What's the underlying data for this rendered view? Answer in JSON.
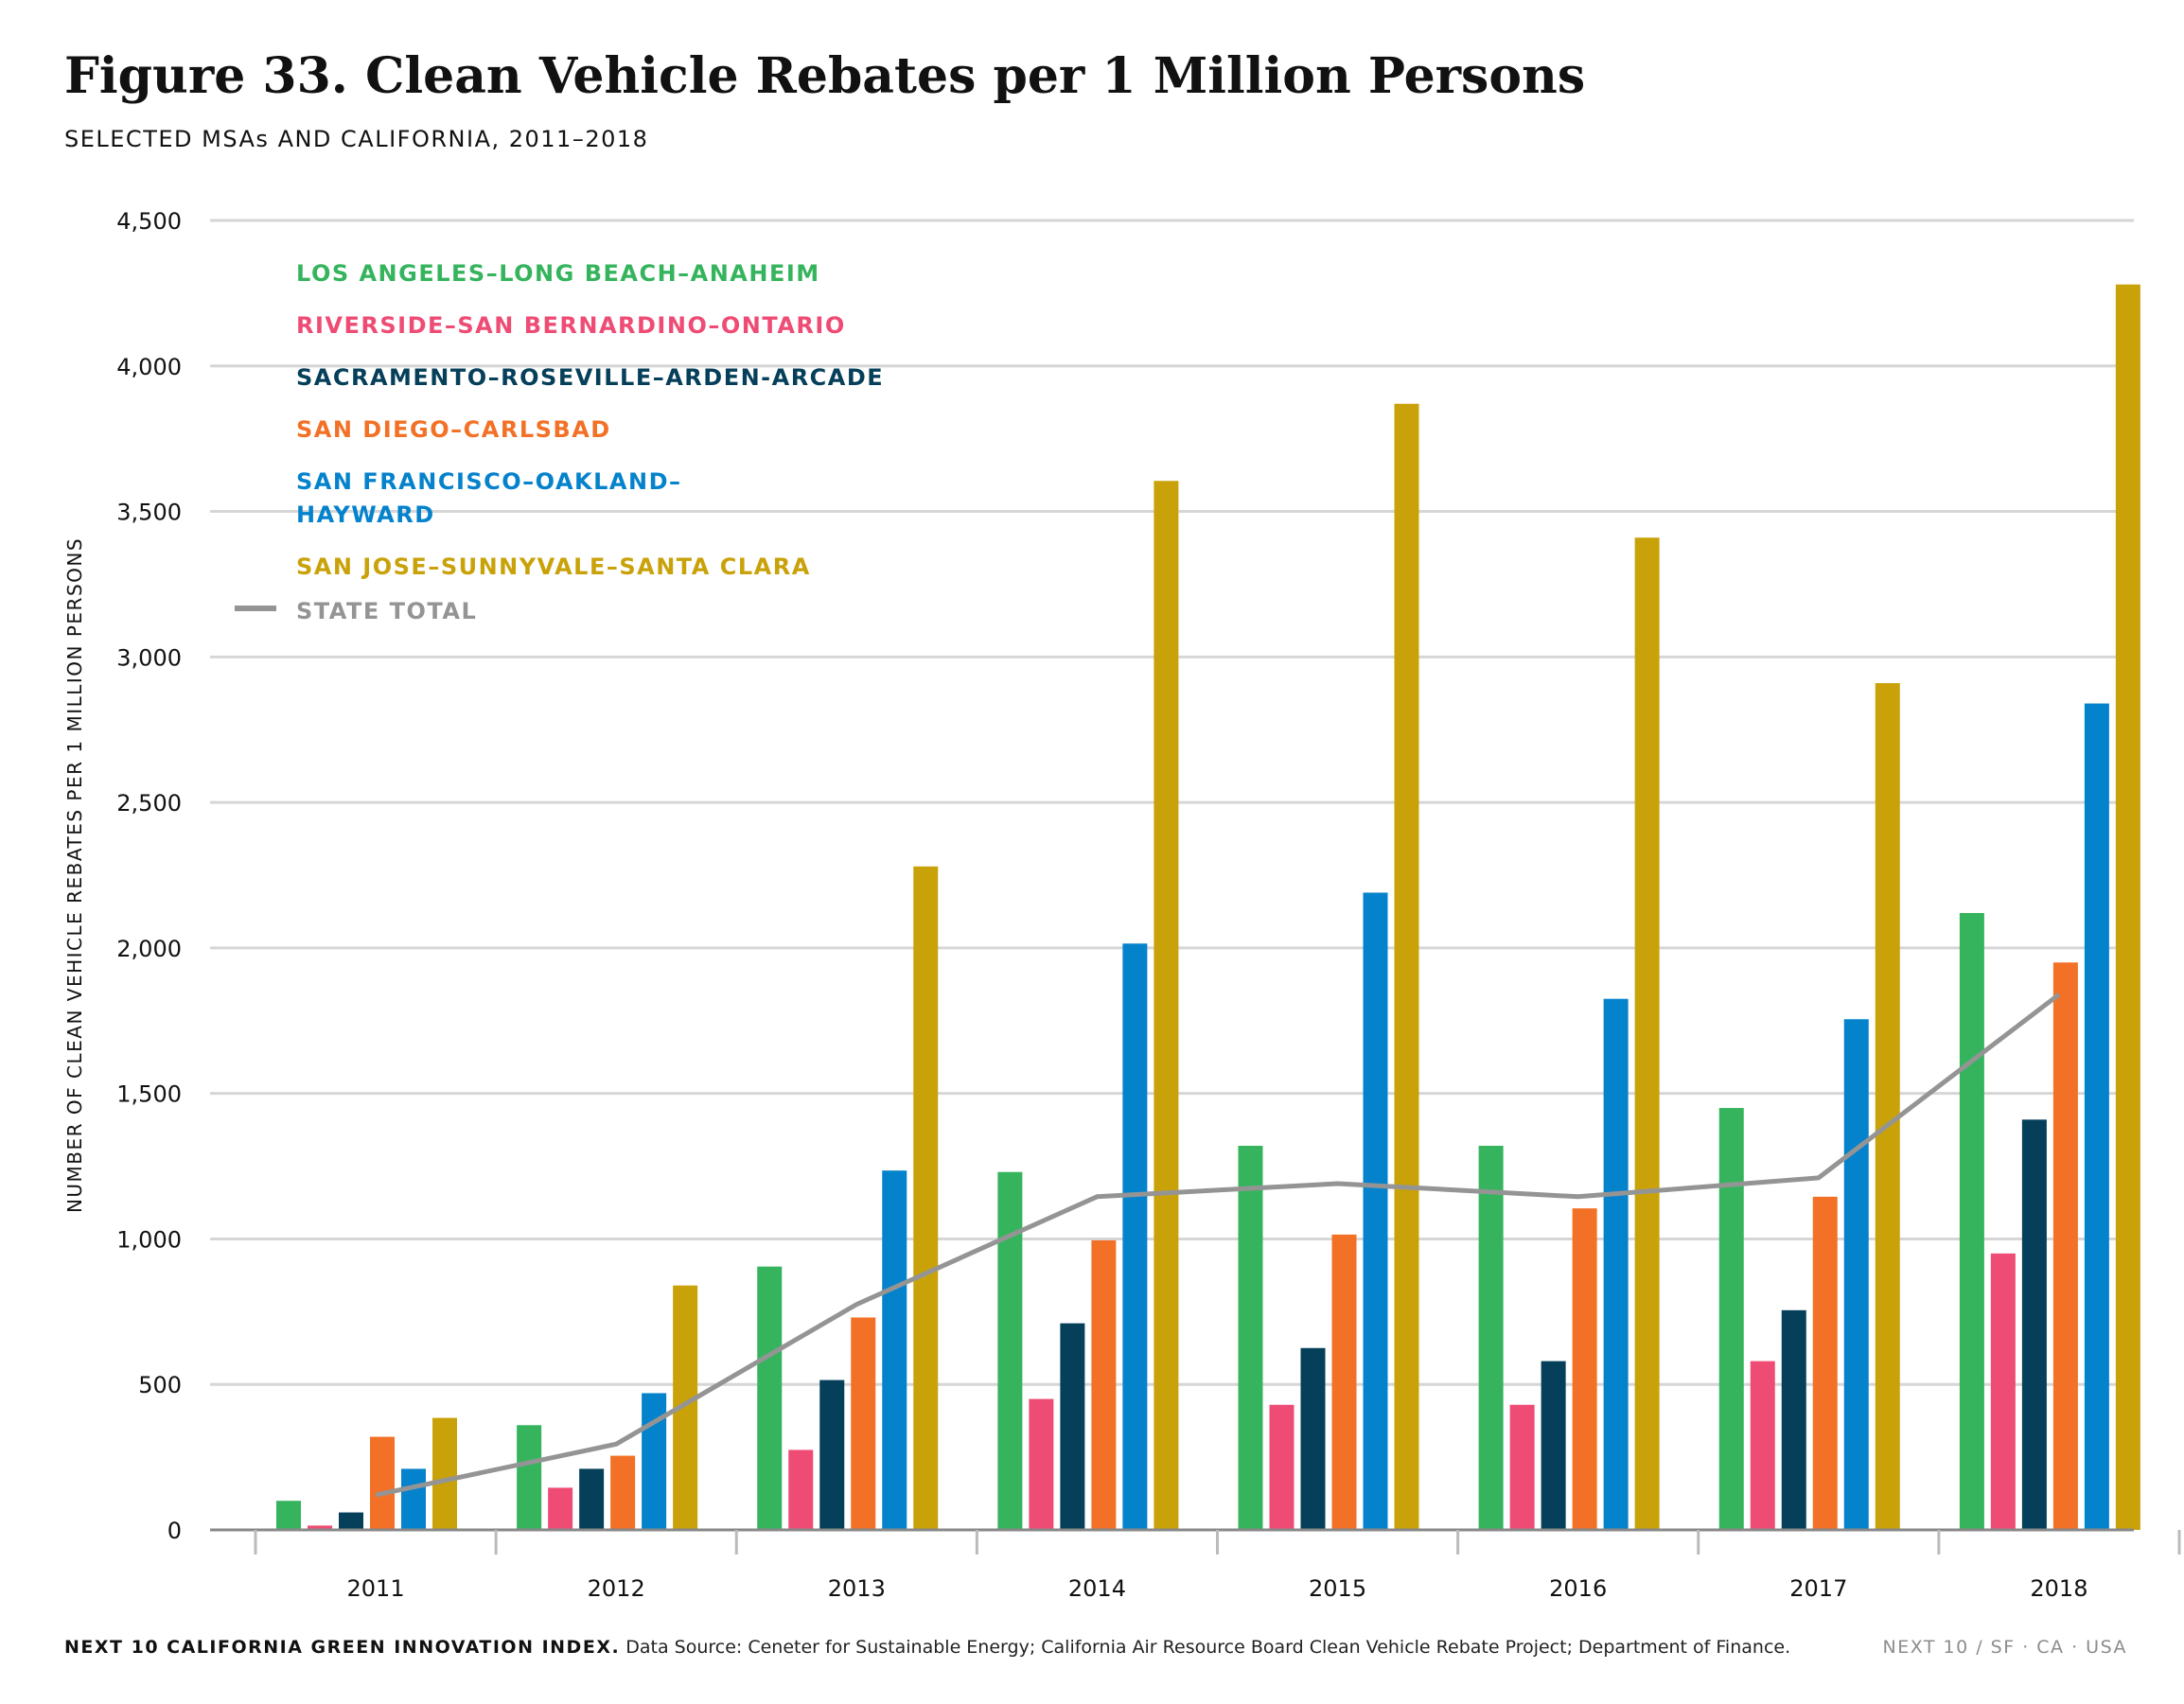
{
  "header": {
    "title": "Figure 33. Clean Vehicle Rebates per 1 Million Persons",
    "subtitle": "SELECTED MSAs AND CALIFORNIA, 2011–2018"
  },
  "footer": {
    "source_label": "NEXT 10 CALIFORNIA GREEN INNOVATION INDEX.",
    "source_note": "Data Source: Ceneter for Sustainable Energy; California Air Resource Board Clean Vehicle Rebate Project; Department of Finance.",
    "brand": "NEXT 10  /  SF · CA · USA"
  },
  "chart_data": {
    "type": "bar",
    "title": "Figure 33. Clean Vehicle Rebates per 1 Million Persons",
    "subtitle": "SELECTED MSAs AND CALIFORNIA, 2011–2018",
    "xlabel": "",
    "ylabel": "NUMBER OF CLEAN VEHICLE REBATES PER 1 MILLION PERSONS",
    "ylim": [
      0,
      4500
    ],
    "yticks": [
      0,
      500,
      1000,
      1500,
      2000,
      2500,
      3000,
      3500,
      4000,
      4500
    ],
    "ytick_labels": [
      "0",
      "500",
      "1,000",
      "1,500",
      "2,000",
      "2,500",
      "3,000",
      "3,500",
      "4,000",
      "4,500"
    ],
    "grid": true,
    "legend_position": "top-left",
    "categories": [
      "2011",
      "2012",
      "2013",
      "2014",
      "2015",
      "2016",
      "2017",
      "2018"
    ],
    "series": [
      {
        "name": "LOS ANGELES–LONG BEACH–ANAHEIM",
        "color": "#35b45d",
        "values": [
          100,
          360,
          905,
          1230,
          1320,
          1320,
          1450,
          2120
        ]
      },
      {
        "name": "RIVERSIDE–SAN BERNARDINO–ONTARIO",
        "color": "#ee4c75",
        "values": [
          15,
          145,
          275,
          450,
          430,
          430,
          580,
          950
        ]
      },
      {
        "name": "SACRAMENTO–ROSEVILLE–ARDEN-ARCADE",
        "color": "#053f5a",
        "values": [
          60,
          210,
          515,
          710,
          625,
          580,
          755,
          1410
        ]
      },
      {
        "name": "SAN DIEGO–CARLSBAD",
        "color": "#f27126",
        "values": [
          320,
          255,
          730,
          995,
          1015,
          1105,
          1145,
          1950
        ]
      },
      {
        "name": "SAN FRANCISCO–OAKLAND–HAYWARD",
        "color": "#0582cc",
        "values": [
          210,
          470,
          1235,
          2015,
          2190,
          1825,
          1755,
          2840
        ]
      },
      {
        "name": "SAN JOSE–SUNNYVALE–SANTA CLARA",
        "color": "#c9a20a",
        "values": [
          385,
          840,
          2280,
          3605,
          3870,
          3410,
          2910,
          4280
        ]
      }
    ],
    "line_series": {
      "name": "STATE TOTAL",
      "color": "#949494",
      "values": [
        120,
        295,
        775,
        1145,
        1190,
        1145,
        1210,
        1840
      ]
    }
  }
}
